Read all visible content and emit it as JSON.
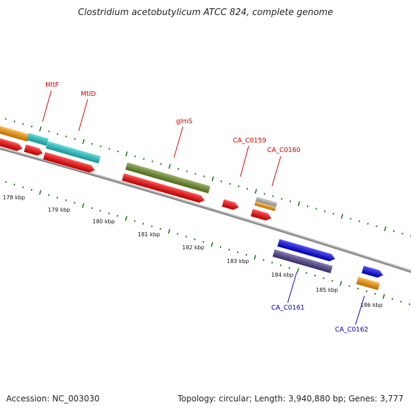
{
  "title": "Clostridium acetobutylicum ATCC 824, complete genome",
  "footer": {
    "accession": "Accession: NC_003030",
    "summary": "Topology: circular; Length: 3,940,880 bp; Genes: 3,777"
  },
  "scale_labels": [
    "178 kbp",
    "179 kbp",
    "180 kbp",
    "181 kbp",
    "182 kbp",
    "183 kbp",
    "184 kbp",
    "185 kbp",
    "186 kbp"
  ],
  "gene_labels": [
    {
      "text": "MltF",
      "color": "#cc0000"
    },
    {
      "text": "MtlD",
      "color": "#cc0000"
    },
    {
      "text": "glmS",
      "color": "#cc0000"
    },
    {
      "text": "CA_C0159",
      "color": "#cc0000"
    },
    {
      "text": "CA_C0160",
      "color": "#cc0000"
    },
    {
      "text": "CA_C0161",
      "color": "#0000bb"
    },
    {
      "text": "CA_C0162",
      "color": "#0000bb"
    }
  ],
  "colors": {
    "backbone": "#8a8a8a",
    "dots": "#1a7a1a",
    "red": "#ff0000",
    "orange": "#ff9900",
    "cyan": "#22cccc",
    "olive": "#6b8e23",
    "blue": "#0000ee",
    "slate": "#4b3d8f",
    "grey": "#bbbbbb"
  }
}
